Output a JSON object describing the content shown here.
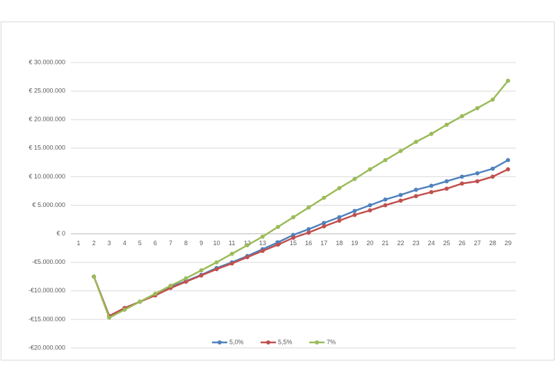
{
  "chart_data": {
    "type": "line",
    "categories": [
      "1",
      "2",
      "3",
      "4",
      "5",
      "6",
      "7",
      "8",
      "9",
      "10",
      "11",
      "12",
      "13",
      "14",
      "15",
      "16",
      "17",
      "18",
      "19",
      "20",
      "21",
      "22",
      "23",
      "24",
      "25",
      "26",
      "27",
      "28",
      "29"
    ],
    "series": [
      {
        "name": "5,0%",
        "color": "#4f81bd",
        "values": [
          null,
          -7500000,
          -14400000,
          -13000000,
          -11900000,
          -10700000,
          -9300000,
          -8300000,
          -7200000,
          -6000000,
          -5000000,
          -3900000,
          -2700000,
          -1500000,
          -200000,
          800000,
          1900000,
          2900000,
          4000000,
          5000000,
          6000000,
          6800000,
          7700000,
          8400000,
          9200000,
          10000000,
          10600000,
          11400000,
          12900000
        ]
      },
      {
        "name": "5,5%",
        "color": "#c0504d",
        "values": [
          null,
          -7500000,
          -14400000,
          -13000000,
          -11900000,
          -10800000,
          -9500000,
          -8400000,
          -7300000,
          -6200000,
          -5200000,
          -4100000,
          -3000000,
          -1900000,
          -700000,
          200000,
          1300000,
          2300000,
          3300000,
          4100000,
          5000000,
          5800000,
          6600000,
          7300000,
          7900000,
          8800000,
          9200000,
          10000000,
          11300000
        ]
      },
      {
        "name": "7%",
        "color": "#9bbb59",
        "values": [
          null,
          -7500000,
          -14700000,
          -13300000,
          -11900000,
          -10500000,
          -9100000,
          -7800000,
          -6400000,
          -5000000,
          -3500000,
          -2000000,
          -500000,
          1200000,
          2900000,
          4600000,
          6300000,
          8000000,
          9600000,
          11300000,
          12900000,
          14500000,
          16100000,
          17500000,
          19100000,
          20600000,
          22000000,
          23500000,
          26800000
        ]
      }
    ],
    "ylim": [
      -20000000,
      30000000
    ],
    "yticks": [
      {
        "value": -20000000,
        "label": "-€20.000.000"
      },
      {
        "value": -15000000,
        "label": "-€15.000.000"
      },
      {
        "value": -10000000,
        "label": "-€10.000.000"
      },
      {
        "value": -5000000,
        "label": "-€5.000.000"
      },
      {
        "value": 0,
        "label": "€ 0"
      },
      {
        "value": 5000000,
        "label": "€ 5.000.000"
      },
      {
        "value": 10000000,
        "label": "€ 10.000.000"
      },
      {
        "value": 15000000,
        "label": "€ 15.000.000"
      },
      {
        "value": 20000000,
        "label": "€ 20.000.000"
      },
      {
        "value": 25000000,
        "label": "€ 25.000.000"
      },
      {
        "value": 30000000,
        "label": "€ 30.000.000"
      }
    ],
    "grid": true,
    "legend": "bottom"
  }
}
